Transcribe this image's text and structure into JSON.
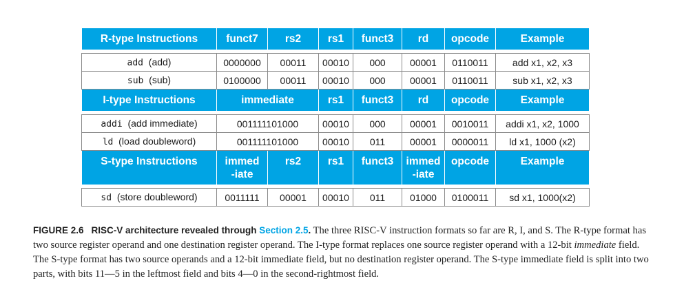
{
  "table": {
    "r_header": [
      "R-type Instructions",
      "funct7",
      "rs2",
      "rs1",
      "funct3",
      "rd",
      "opcode",
      "Example"
    ],
    "r_rows": [
      {
        "mnemonic": "add",
        "desc": "(add)",
        "cells": [
          "0000000",
          "00011",
          "00010",
          "000",
          "00001",
          "0110011",
          "add x1, x2, x3"
        ]
      },
      {
        "mnemonic": "sub",
        "desc": "(sub)",
        "cells": [
          "0100000",
          "00011",
          "00010",
          "000",
          "00001",
          "0110011",
          "sub x1, x2, x3"
        ]
      }
    ],
    "i_header": [
      "I-type Instructions",
      "immediate",
      "rs1",
      "funct3",
      "rd",
      "opcode",
      "Example"
    ],
    "i_rows": [
      {
        "mnemonic": "addi",
        "desc": "(add immediate)",
        "cells": [
          "001111101000",
          "00010",
          "000",
          "00001",
          "0010011",
          "addi x1, x2, 1000"
        ]
      },
      {
        "mnemonic": "ld",
        "desc": "(load doubleword)",
        "cells": [
          "001111101000",
          "00010",
          "011",
          "00001",
          "0000011",
          "ld x1, 1000 (x2)"
        ]
      }
    ],
    "s_header": {
      "title": "S-type Instructions",
      "immed_hi_1": "immed",
      "immed_hi_2": "-iate",
      "rs2": "rs2",
      "rs1": "rs1",
      "funct3": "funct3",
      "immed_lo_1": "immed",
      "immed_lo_2": "-iate",
      "opcode": "opcode",
      "example": "Example"
    },
    "s_rows": [
      {
        "mnemonic": "sd",
        "desc": "(store doubleword)",
        "cells": [
          "0011111",
          "00001",
          "00010",
          "011",
          "01000",
          "0100011",
          "sd x1, 1000(x2)"
        ]
      }
    ]
  },
  "caption": {
    "label": "FIGURE 2.6",
    "title": "RISC-V architecture revealed through",
    "section_ref": "Section 2.5",
    "title_end": ".",
    "text_1": " The three RISC-V instruction formats so far are R, I, and S. The R-type format has two source register operand and one destination register operand. The I-type format replaces one source register operand with a 12-bit ",
    "emph": "immediate",
    "text_2": " field. The S-type format has two source operands and a 12-bit immediate field, but no destination register operand. The S-type immediate field is split into two parts, with bits 11—5 in the leftmost field and bits 4—0 in the second-rightmost field."
  },
  "colors": {
    "header_bg": "#00a4e4",
    "header_text": "#ffffff",
    "section_ref": "#00a4e4"
  }
}
